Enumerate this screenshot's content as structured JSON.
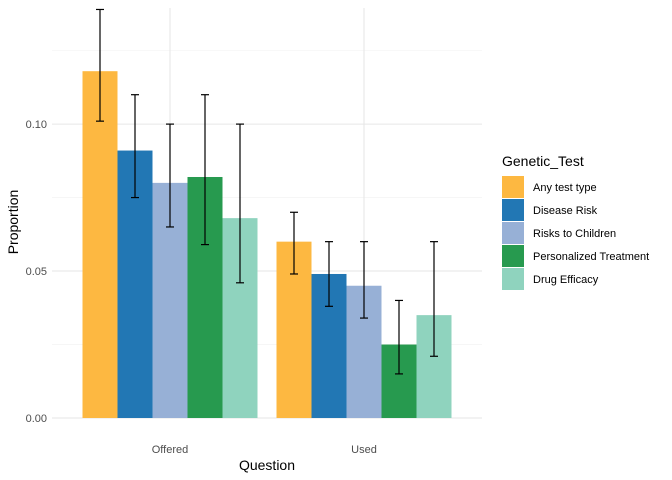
{
  "chart_data": {
    "type": "bar",
    "title": "",
    "xlabel": "Question",
    "ylabel": "Proportion",
    "categories": [
      "Offered",
      "Used"
    ],
    "ylim": [
      0,
      0.1395
    ],
    "yticks": [
      {
        "value": 0.0,
        "label": "0.00"
      },
      {
        "value": 0.05,
        "label": "0.05"
      },
      {
        "value": 0.1,
        "label": "0.10"
      }
    ],
    "grid": true,
    "legend": {
      "title": "Genetic_Test",
      "position": "right"
    },
    "series": [
      {
        "name": "Any test type",
        "color": "#FDB841",
        "values": [
          0.118,
          0.06
        ],
        "err_low": [
          0.101,
          0.049
        ],
        "err_high": [
          0.139,
          0.07
        ]
      },
      {
        "name": "Disease Risk",
        "color": "#2277B4",
        "values": [
          0.091,
          0.049
        ],
        "err_low": [
          0.075,
          0.038
        ],
        "err_high": [
          0.11,
          0.06
        ]
      },
      {
        "name": "Risks to Children",
        "color": "#97B0D6",
        "values": [
          0.08,
          0.045
        ],
        "err_low": [
          0.065,
          0.034
        ],
        "err_high": [
          0.1,
          0.06
        ]
      },
      {
        "name": "Personalized Treatment",
        "color": "#279A4F",
        "values": [
          0.082,
          0.025
        ],
        "err_low": [
          0.059,
          0.015
        ],
        "err_high": [
          0.11,
          0.04
        ]
      },
      {
        "name": "Drug Efficacy",
        "color": "#8FD3BE",
        "values": [
          0.068,
          0.035
        ],
        "err_low": [
          0.046,
          0.021
        ],
        "err_high": [
          0.1,
          0.06
        ]
      }
    ]
  }
}
